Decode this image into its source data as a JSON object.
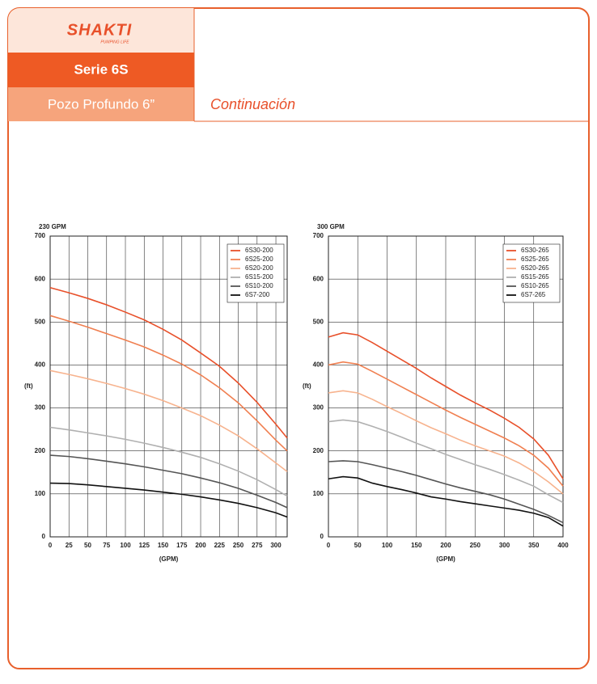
{
  "header": {
    "logo": "SHAKTI",
    "tagline": "PUMPING LIFE",
    "series": "Serie 6S",
    "subtitle": "Pozo Profundo 6”",
    "section": "Continuación"
  },
  "chart_data": [
    {
      "type": "line",
      "title": "230 GPM",
      "xlabel": "(GPM)",
      "ylabel": "(ft)",
      "grid": true,
      "legend": "upper right",
      "x": [
        0,
        25,
        50,
        75,
        100,
        125,
        150,
        175,
        200,
        225,
        250,
        275,
        300,
        315
      ],
      "xlim": [
        0,
        315
      ],
      "xticks": [
        0,
        25,
        50,
        75,
        100,
        125,
        150,
        175,
        200,
        225,
        250,
        275,
        300
      ],
      "ylim": [
        0,
        700
      ],
      "yticks": [
        0,
        100,
        200,
        300,
        400,
        500,
        600,
        700
      ],
      "series": [
        {
          "name": "6S30-200",
          "color": "#e8502a",
          "values": [
            580,
            568,
            555,
            540,
            523,
            505,
            483,
            458,
            428,
            397,
            358,
            313,
            262,
            230
          ]
        },
        {
          "name": "6S25-200",
          "color": "#f07f50",
          "values": [
            515,
            502,
            488,
            473,
            458,
            442,
            423,
            402,
            377,
            347,
            312,
            270,
            225,
            200
          ]
        },
        {
          "name": "6S20-200",
          "color": "#f7b38e",
          "values": [
            387,
            378,
            368,
            357,
            345,
            332,
            317,
            300,
            282,
            260,
            235,
            205,
            172,
            152
          ]
        },
        {
          "name": "6S15-200",
          "color": "#b0b0b0",
          "values": [
            255,
            249,
            242,
            235,
            227,
            218,
            208,
            197,
            185,
            170,
            153,
            133,
            110,
            95
          ]
        },
        {
          "name": "6S10-200",
          "color": "#555555",
          "values": [
            190,
            187,
            182,
            176,
            170,
            163,
            155,
            147,
            137,
            126,
            113,
            97,
            80,
            68
          ]
        },
        {
          "name": "6S7-200",
          "color": "#111111",
          "values": [
            125,
            124,
            121,
            117,
            113,
            109,
            104,
            99,
            93,
            86,
            78,
            68,
            56,
            46
          ]
        }
      ]
    },
    {
      "type": "line",
      "title": "300 GPM",
      "xlabel": "(GPM)",
      "ylabel": "(ft)",
      "grid": true,
      "legend": "upper right",
      "x": [
        0,
        25,
        50,
        75,
        100,
        125,
        150,
        175,
        200,
        225,
        250,
        275,
        300,
        325,
        350,
        375,
        400
      ],
      "xlim": [
        0,
        400
      ],
      "xticks": [
        0,
        50,
        100,
        150,
        200,
        250,
        300,
        350,
        400
      ],
      "ylim": [
        0,
        700
      ],
      "yticks": [
        0,
        100,
        200,
        300,
        400,
        500,
        600,
        700
      ],
      "series": [
        {
          "name": "6S30-265",
          "color": "#e8502a",
          "values": [
            465,
            475,
            470,
            452,
            432,
            412,
            392,
            370,
            350,
            330,
            312,
            295,
            276,
            255,
            228,
            190,
            135
          ]
        },
        {
          "name": "6S25-265",
          "color": "#f07f50",
          "values": [
            400,
            407,
            402,
            385,
            367,
            349,
            331,
            313,
            295,
            278,
            262,
            246,
            230,
            212,
            190,
            160,
            118
          ]
        },
        {
          "name": "6S20-265",
          "color": "#f7b38e",
          "values": [
            335,
            340,
            335,
            320,
            303,
            287,
            270,
            254,
            240,
            225,
            212,
            200,
            188,
            172,
            152,
            128,
            100
          ]
        },
        {
          "name": "6S15-265",
          "color": "#b0b0b0",
          "values": [
            268,
            272,
            268,
            257,
            245,
            232,
            218,
            205,
            192,
            180,
            168,
            157,
            145,
            132,
            118,
            98,
            80
          ]
        },
        {
          "name": "6S10-265",
          "color": "#555555",
          "values": [
            175,
            177,
            175,
            168,
            160,
            152,
            143,
            133,
            123,
            114,
            106,
            98,
            88,
            76,
            64,
            50,
            33
          ]
        },
        {
          "name": "6S7-265",
          "color": "#111111",
          "values": [
            135,
            140,
            137,
            125,
            117,
            110,
            102,
            93,
            88,
            82,
            77,
            72,
            67,
            62,
            55,
            45,
            25
          ]
        }
      ]
    }
  ]
}
